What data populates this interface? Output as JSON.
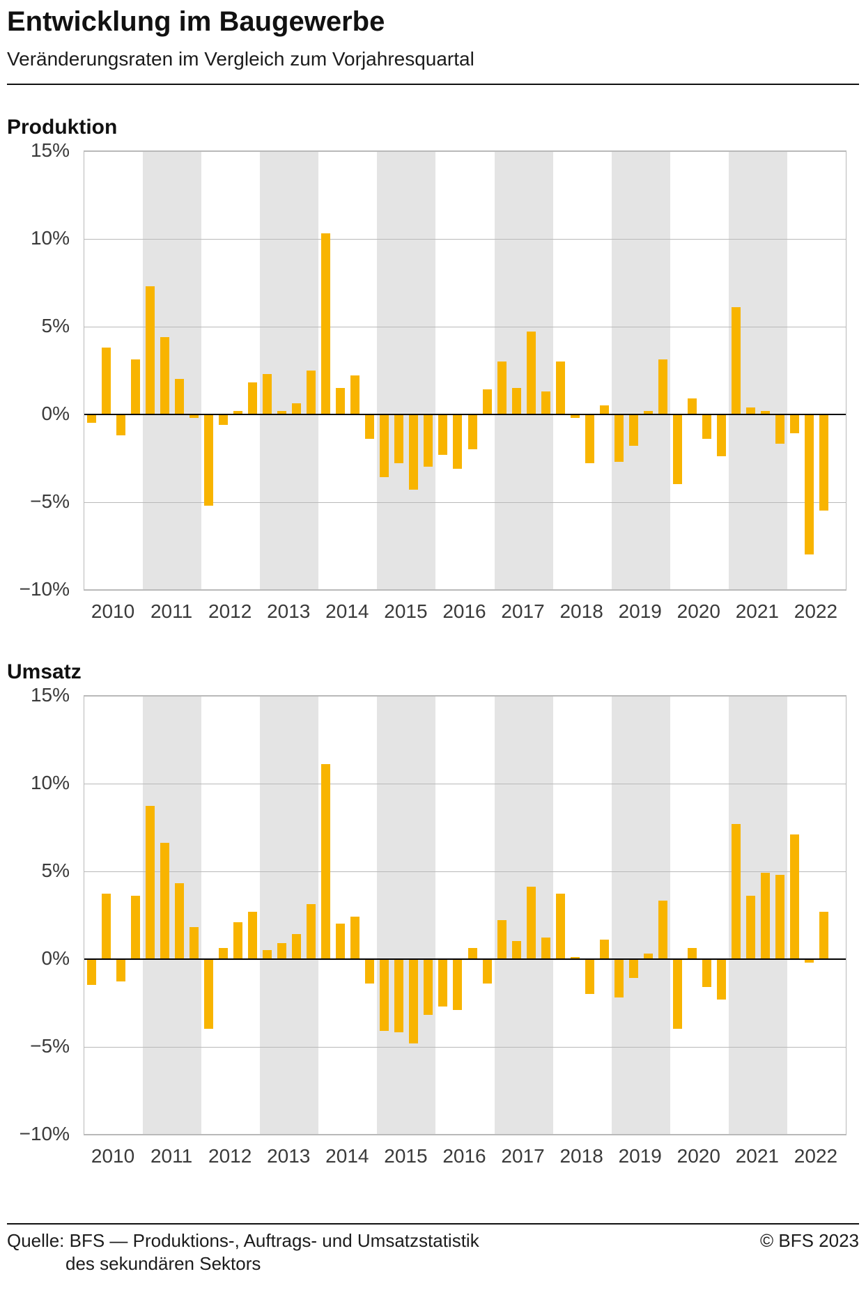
{
  "header": {
    "title": "Entwicklung im Baugewerbe",
    "subtitle": "Veränderungsraten im Vergleich zum Vorjahresquartal"
  },
  "colors": {
    "bar": "#F8B400",
    "band": "#E4E4E4",
    "grid": "#B9B9B9",
    "zero_line": "#000000",
    "axis_text": "#3A3A3A"
  },
  "chart_data": [
    {
      "type": "bar",
      "title": "Produktion",
      "x": [
        "2010 Q1",
        "2010 Q2",
        "2010 Q3",
        "2010 Q4",
        "2011 Q1",
        "2011 Q2",
        "2011 Q3",
        "2011 Q4",
        "2012 Q1",
        "2012 Q2",
        "2012 Q3",
        "2012 Q4",
        "2013 Q1",
        "2013 Q2",
        "2013 Q3",
        "2013 Q4",
        "2014 Q1",
        "2014 Q2",
        "2014 Q3",
        "2014 Q4",
        "2015 Q1",
        "2015 Q2",
        "2015 Q3",
        "2015 Q4",
        "2016 Q1",
        "2016 Q2",
        "2016 Q3",
        "2016 Q4",
        "2017 Q1",
        "2017 Q2",
        "2017 Q3",
        "2017 Q4",
        "2018 Q1",
        "2018 Q2",
        "2018 Q3",
        "2018 Q4",
        "2019 Q1",
        "2019 Q2",
        "2019 Q3",
        "2019 Q4",
        "2020 Q1",
        "2020 Q2",
        "2020 Q3",
        "2020 Q4",
        "2021 Q1",
        "2021 Q2",
        "2021 Q3",
        "2021 Q4",
        "2022 Q1",
        "2022 Q2",
        "2022 Q3"
      ],
      "values": [
        -0.5,
        3.8,
        -1.2,
        3.1,
        7.3,
        4.4,
        2.0,
        -0.2,
        -5.2,
        -0.6,
        0.2,
        1.8,
        2.3,
        0.2,
        0.6,
        2.5,
        10.3,
        1.5,
        2.2,
        -1.4,
        -3.6,
        -2.8,
        -4.3,
        -3.0,
        -2.3,
        -3.1,
        -2.0,
        1.4,
        3.0,
        1.5,
        4.7,
        1.3,
        3.0,
        -0.2,
        -2.8,
        0.5,
        -2.7,
        -1.8,
        0.2,
        3.1,
        -4.0,
        0.9,
        -1.4,
        -2.4,
        6.1,
        0.4,
        0.2,
        -1.7,
        -1.1,
        -8.0,
        -5.5
      ],
      "year_labels": [
        "2010",
        "2011",
        "2012",
        "2013",
        "2014",
        "2015",
        "2016",
        "2017",
        "2018",
        "2019",
        "2020",
        "2021",
        "2022"
      ],
      "shaded_years": [
        "2011",
        "2013",
        "2015",
        "2017",
        "2019",
        "2021"
      ],
      "ylim": [
        -10,
        15
      ],
      "yticks": [
        15,
        10,
        5,
        0,
        -5,
        -10
      ],
      "ytick_labels": [
        "15%",
        "10%",
        "5%",
        "0%",
        "−5%",
        "−10%"
      ],
      "xlabel": "",
      "ylabel": "",
      "grid": "horizontal",
      "legend": "none"
    },
    {
      "type": "bar",
      "title": "Umsatz",
      "x": [
        "2010 Q1",
        "2010 Q2",
        "2010 Q3",
        "2010 Q4",
        "2011 Q1",
        "2011 Q2",
        "2011 Q3",
        "2011 Q4",
        "2012 Q1",
        "2012 Q2",
        "2012 Q3",
        "2012 Q4",
        "2013 Q1",
        "2013 Q2",
        "2013 Q3",
        "2013 Q4",
        "2014 Q1",
        "2014 Q2",
        "2014 Q3",
        "2014 Q4",
        "2015 Q1",
        "2015 Q2",
        "2015 Q3",
        "2015 Q4",
        "2016 Q1",
        "2016 Q2",
        "2016 Q3",
        "2016 Q4",
        "2017 Q1",
        "2017 Q2",
        "2017 Q3",
        "2017 Q4",
        "2018 Q1",
        "2018 Q2",
        "2018 Q3",
        "2018 Q4",
        "2019 Q1",
        "2019 Q2",
        "2019 Q3",
        "2019 Q4",
        "2020 Q1",
        "2020 Q2",
        "2020 Q3",
        "2020 Q4",
        "2021 Q1",
        "2021 Q2",
        "2021 Q3",
        "2021 Q4",
        "2022 Q1",
        "2022 Q2",
        "2022 Q3"
      ],
      "values": [
        -1.5,
        3.7,
        -1.3,
        3.6,
        8.7,
        6.6,
        4.3,
        1.8,
        -4.0,
        0.6,
        2.1,
        2.7,
        0.5,
        0.9,
        1.4,
        3.1,
        11.1,
        2.0,
        2.4,
        -1.4,
        -4.1,
        -4.2,
        -4.8,
        -3.2,
        -2.7,
        -2.9,
        0.6,
        -1.4,
        2.2,
        1.0,
        4.1,
        1.2,
        3.7,
        0.1,
        -2.0,
        1.1,
        -2.2,
        -1.1,
        0.3,
        3.3,
        -4.0,
        0.6,
        -1.6,
        -2.3,
        7.7,
        3.6,
        4.9,
        4.8,
        7.1,
        -0.2,
        2.7
      ],
      "year_labels": [
        "2010",
        "2011",
        "2012",
        "2013",
        "2014",
        "2015",
        "2016",
        "2017",
        "2018",
        "2019",
        "2020",
        "2021",
        "2022"
      ],
      "shaded_years": [
        "2011",
        "2013",
        "2015",
        "2017",
        "2019",
        "2021"
      ],
      "ylim": [
        -10,
        15
      ],
      "yticks": [
        15,
        10,
        5,
        0,
        -5,
        -10
      ],
      "ytick_labels": [
        "15%",
        "10%",
        "5%",
        "0%",
        "−5%",
        "−10%"
      ],
      "xlabel": "",
      "ylabel": "",
      "grid": "horizontal",
      "legend": "none"
    }
  ],
  "footer": {
    "source_line1": "Quelle: BFS — Produktions-, Auftrags- und Umsatzstatistik",
    "source_line2": "des sekundären Sektors",
    "copyright": "© BFS 2023"
  }
}
